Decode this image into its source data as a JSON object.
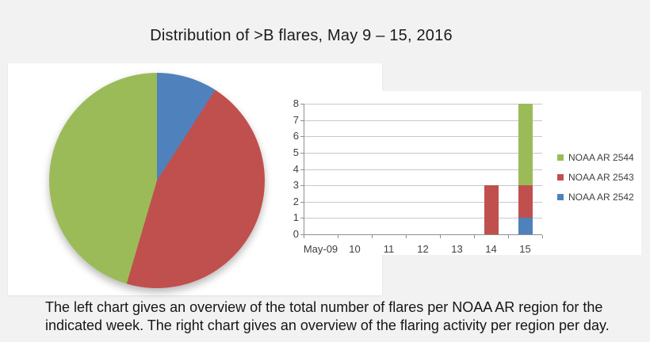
{
  "title": "Distribution of >B flares, May 9 – 15, 2016",
  "caption": {
    "lines": [
      "The left chart gives an overview of the total number of flares per NOAA AR region for the",
      "indicated week. The right chart gives an overview of the flaring activity per region per day."
    ]
  },
  "colors": {
    "green": "#9BBB59",
    "red": "#C0504D",
    "blue": "#4F81BD",
    "grid": "#c8c8c8",
    "axis": "#8f8f8f",
    "background": "#f2f2f2",
    "panel": "#ffffff"
  },
  "legend": {
    "entries": [
      {
        "label": "NOAA AR 2544",
        "color": "#9BBB59"
      },
      {
        "label": "NOAA AR 2543",
        "color": "#C0504D"
      },
      {
        "label": "NOAA AR 2542",
        "color": "#4F81BD"
      }
    ]
  },
  "chart_data": [
    {
      "type": "pie",
      "description": "Total number of >B flares per NOAA AR region for the week May 9-15, 2016",
      "start_angle_deg": 0,
      "direction": "clockwise",
      "slices": [
        {
          "label": "NOAA AR 2542",
          "value": 1,
          "color": "#4F81BD"
        },
        {
          "label": "NOAA AR 2543",
          "value": 5,
          "color": "#C0504D"
        },
        {
          "label": "NOAA AR 2544",
          "value": 5,
          "color": "#9BBB59"
        }
      ],
      "total": 11
    },
    {
      "type": "bar",
      "stacked": true,
      "description": "Flaring activity per region per day",
      "categories": [
        "May-09",
        "10",
        "11",
        "12",
        "13",
        "14",
        "15"
      ],
      "series": [
        {
          "name": "NOAA AR 2542",
          "color": "#4F81BD",
          "values": [
            0,
            0,
            0,
            0,
            0,
            0,
            1
          ]
        },
        {
          "name": "NOAA AR 2543",
          "color": "#C0504D",
          "values": [
            0,
            0,
            0,
            0,
            0,
            3,
            2
          ]
        },
        {
          "name": "NOAA AR 2544",
          "color": "#9BBB59",
          "values": [
            0,
            0,
            0,
            0,
            0,
            0,
            5
          ]
        }
      ],
      "ylim": [
        0,
        8
      ],
      "yticks": [
        0,
        1,
        2,
        3,
        4,
        5,
        6,
        7,
        8
      ],
      "grid": true,
      "legend_position": "right"
    }
  ]
}
